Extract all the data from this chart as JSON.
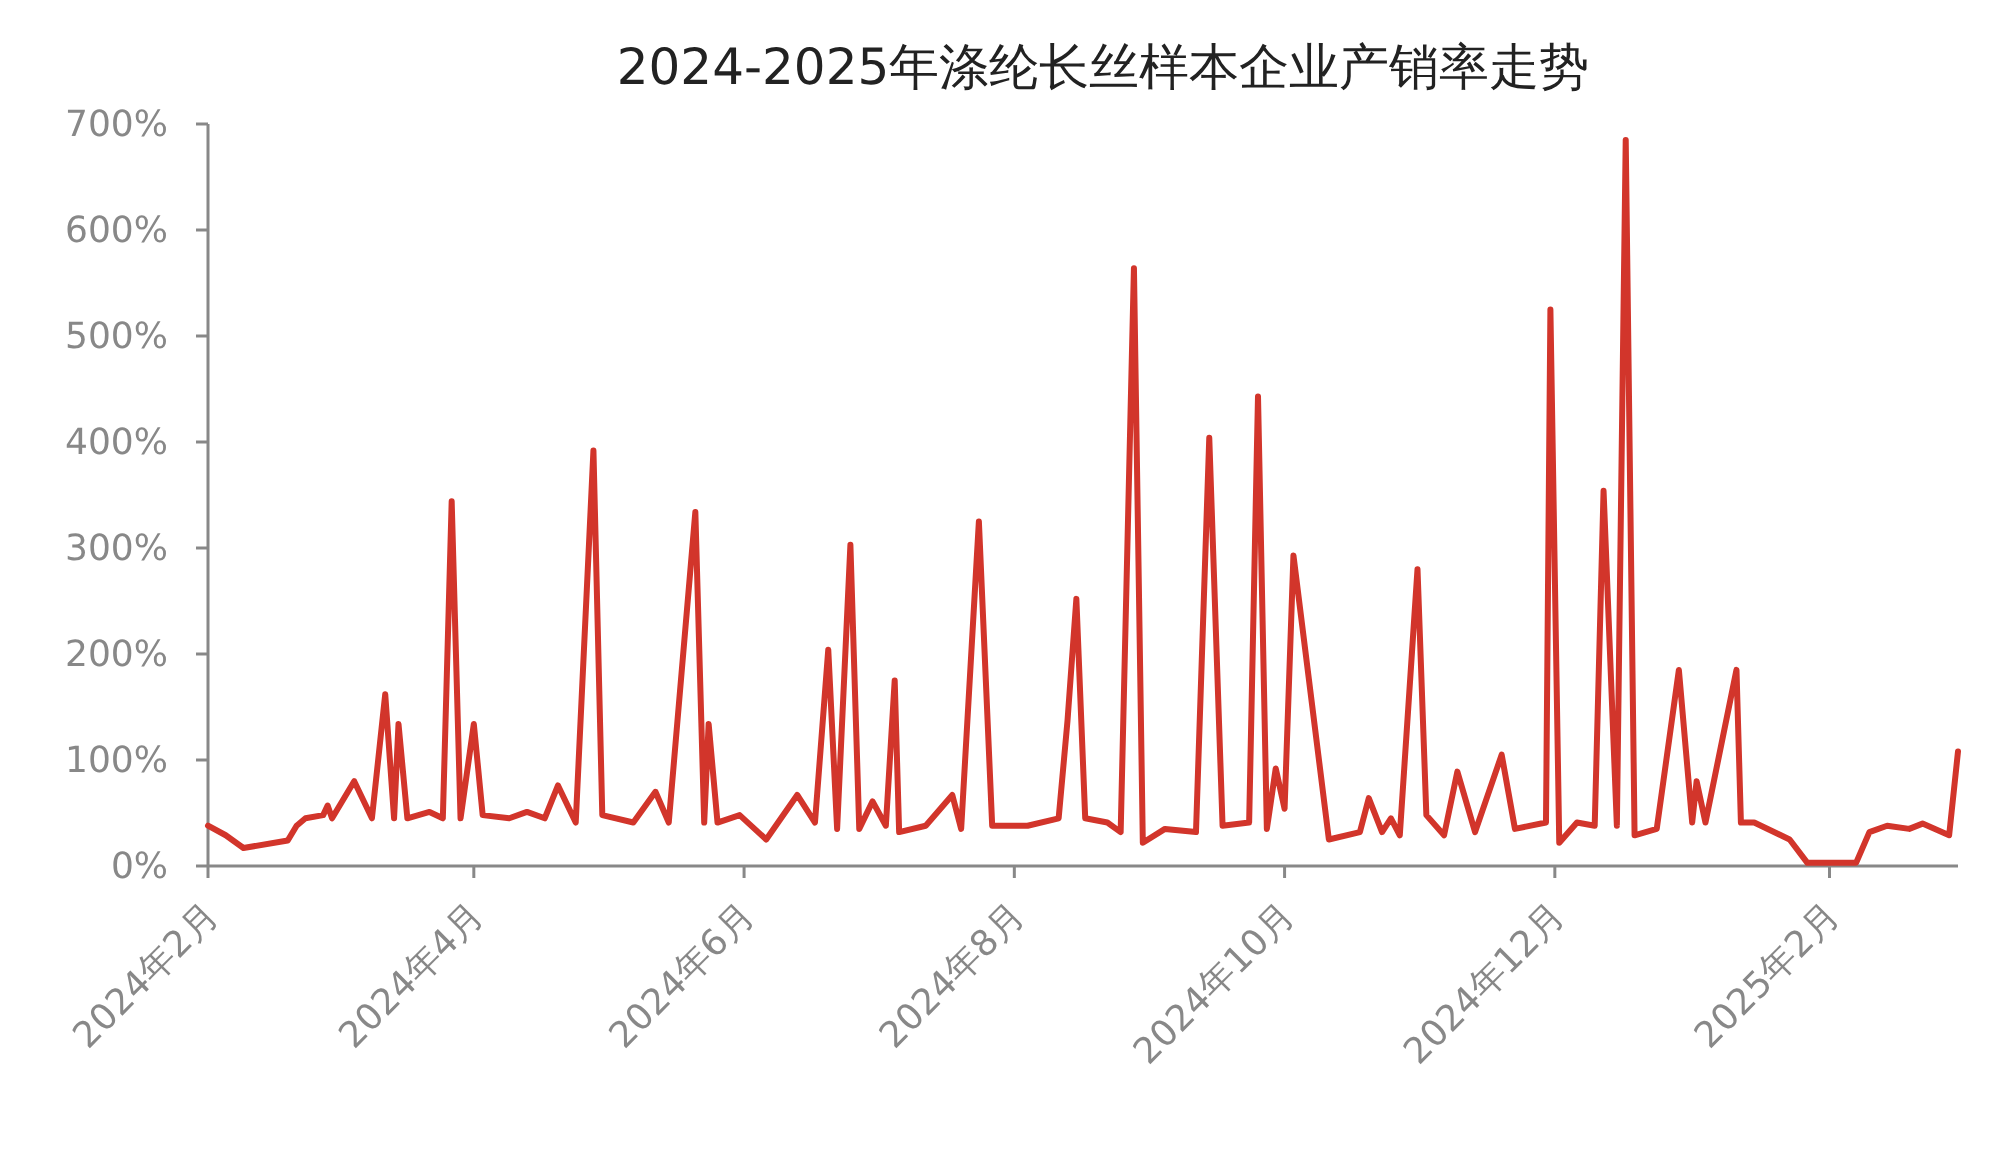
{
  "chart_data": {
    "type": "line",
    "title": "2024-2025年涤纶长丝样本企业产销率走势",
    "x": [
      "2024-02-01",
      "2024-02-05",
      "2024-02-09",
      "2024-02-19",
      "2024-02-21",
      "2024-02-23",
      "2024-02-27",
      "2024-02-28",
      "2024-02-29",
      "2024-03-05",
      "2024-03-09",
      "2024-03-12",
      "2024-03-14",
      "2024-03-15",
      "2024-03-17",
      "2024-03-22",
      "2024-03-25",
      "2024-03-27",
      "2024-03-29",
      "2024-04-01",
      "2024-04-03",
      "2024-04-09",
      "2024-04-13",
      "2024-04-17",
      "2024-04-20",
      "2024-04-24",
      "2024-04-28",
      "2024-04-30",
      "2024-05-07",
      "2024-05-12",
      "2024-05-15",
      "2024-05-21",
      "2024-05-23",
      "2024-05-24",
      "2024-05-26",
      "2024-05-31",
      "2024-06-06",
      "2024-06-13",
      "2024-06-17",
      "2024-06-20",
      "2024-06-22",
      "2024-06-25",
      "2024-06-27",
      "2024-06-30",
      "2024-07-03",
      "2024-07-05",
      "2024-07-06",
      "2024-07-12",
      "2024-07-18",
      "2024-07-20",
      "2024-07-24",
      "2024-07-27",
      "2024-08-04",
      "2024-08-11",
      "2024-08-13",
      "2024-08-15",
      "2024-08-17",
      "2024-08-22",
      "2024-08-25",
      "2024-08-28",
      "2024-08-30",
      "2024-09-04",
      "2024-09-11",
      "2024-09-14",
      "2024-09-17",
      "2024-09-23",
      "2024-09-25",
      "2024-09-27",
      "2024-09-29",
      "2024-10-01",
      "2024-10-03",
      "2024-10-11",
      "2024-10-18",
      "2024-10-20",
      "2024-10-23",
      "2024-10-25",
      "2024-10-27",
      "2024-10-31",
      "2024-11-02",
      "2024-11-06",
      "2024-11-09",
      "2024-11-13",
      "2024-11-19",
      "2024-11-22",
      "2024-11-29",
      "2024-11-30",
      "2024-12-02",
      "2024-12-06",
      "2024-12-10",
      "2024-12-12",
      "2024-12-15",
      "2024-12-17",
      "2024-12-19",
      "2024-12-24",
      "2024-12-29",
      "2025-01-01",
      "2025-01-02",
      "2025-01-04",
      "2025-01-11",
      "2025-01-12",
      "2025-01-15",
      "2025-01-23",
      "2025-01-27",
      "2025-02-07",
      "2025-02-10",
      "2025-02-14",
      "2025-02-19",
      "2025-02-22",
      "2025-02-28",
      "2025-03-02"
    ],
    "series": [
      {
        "color": "#d2352b",
        "values": [
          38,
          29,
          17,
          24,
          38,
          45,
          48,
          57,
          45,
          80,
          45,
          162,
          45,
          134,
          45,
          51,
          45,
          344,
          45,
          134,
          48,
          45,
          51,
          45,
          76,
          41,
          392,
          48,
          41,
          70,
          41,
          334,
          41,
          134,
          41,
          48,
          25,
          67,
          41,
          204,
          35,
          303,
          35,
          61,
          38,
          175,
          32,
          38,
          67,
          35,
          325,
          38,
          38,
          45,
          137,
          252,
          45,
          41,
          32,
          564,
          22,
          35,
          32,
          404,
          38,
          41,
          443,
          35,
          92,
          54,
          293,
          25,
          32,
          64,
          32,
          45,
          29,
          280,
          48,
          29,
          89,
          32,
          105,
          35,
          41,
          525,
          22,
          41,
          38,
          354,
          38,
          685,
          29,
          35,
          185,
          41,
          80,
          41,
          185,
          41,
          41,
          25,
          3,
          3,
          32,
          38,
          35,
          40,
          29,
          108
        ]
      }
    ],
    "xlim": [
      "2024-02-01",
      "2025-03-02"
    ],
    "xticks": [
      {
        "value": "2024-02-01",
        "label": "2024年2月"
      },
      {
        "value": "2024-04-01",
        "label": "2024年4月"
      },
      {
        "value": "2024-06-01",
        "label": "2024年6月"
      },
      {
        "value": "2024-08-01",
        "label": "2024年8月"
      },
      {
        "value": "2024-10-01",
        "label": "2024年10月"
      },
      {
        "value": "2024-12-01",
        "label": "2024年12月"
      },
      {
        "value": "2025-02-01",
        "label": "2025年2月"
      }
    ],
    "ylim": [
      0,
      700
    ],
    "yticks": [
      {
        "value": 0,
        "label": "0%"
      },
      {
        "value": 100,
        "label": "100%"
      },
      {
        "value": 200,
        "label": "200%"
      },
      {
        "value": 300,
        "label": "300%"
      },
      {
        "value": 400,
        "label": "400%"
      },
      {
        "value": 500,
        "label": "500%"
      },
      {
        "value": 600,
        "label": "600%"
      },
      {
        "value": 700,
        "label": "700%"
      }
    ],
    "grid": false
  }
}
